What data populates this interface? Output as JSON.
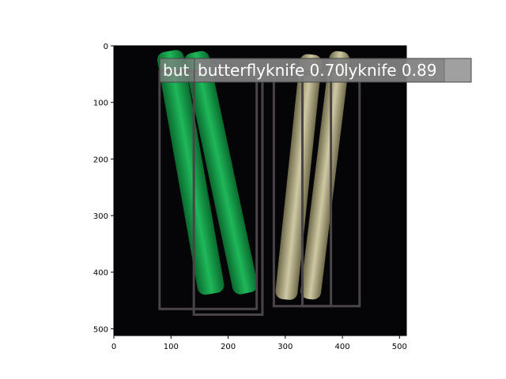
{
  "image": {
    "description_free": true,
    "background": "#050508"
  },
  "axes": {
    "x_ticks": [
      "0",
      "100",
      "200",
      "300",
      "400",
      "500"
    ],
    "y_ticks": [
      "0",
      "100",
      "200",
      "300",
      "400",
      "500"
    ],
    "xlim": [
      0,
      512
    ],
    "ylim": [
      512,
      0
    ]
  },
  "box_color": "#4a4446",
  "label_bg": "#808080",
  "detections": [
    {
      "label": "butterflyknife 0.89",
      "x0": 80,
      "y0": 45,
      "x1": 250,
      "y1": 465
    },
    {
      "label": "butterflyknife 0.70",
      "x0": 140,
      "y0": 45,
      "x1": 260,
      "y1": 475
    },
    {
      "label": "butterflyknife 0.?",
      "x0": 280,
      "y0": 50,
      "x1": 380,
      "y1": 460
    },
    {
      "label": "butterflyknife 0.?",
      "x0": 330,
      "y0": 45,
      "x1": 430,
      "y1": 460
    }
  ],
  "labels_visible": [
    "butterflyknife 0.70",
    "lyknife 0.89",
    "but"
  ]
}
